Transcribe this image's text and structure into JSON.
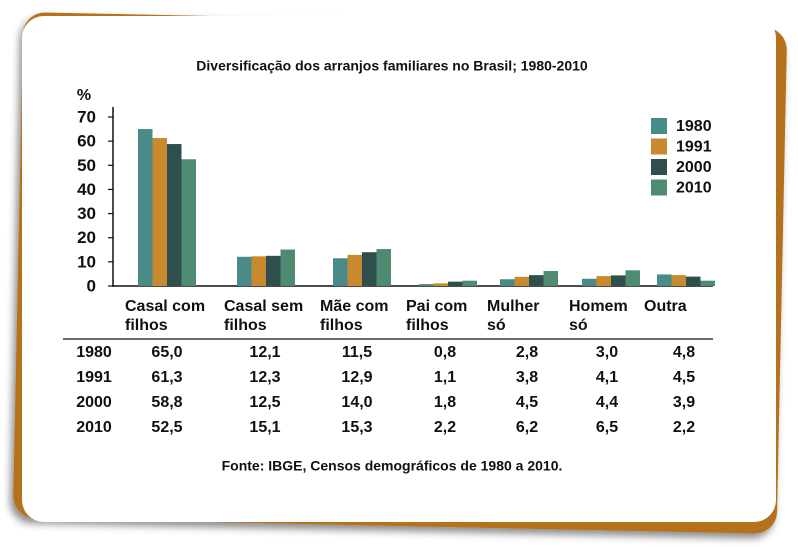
{
  "chart_data": {
    "type": "bar",
    "title": "Diversificação dos arranjos familiares no Brasil; 1980-2010",
    "y_axis_label": "%",
    "categories": [
      "Casal com\nfilhos",
      "Casal sem\nfilhos",
      "Mãe com\nfilhos",
      "Pai com\nfilhos",
      "Mulher\nsó",
      "Homem\nsó",
      "Outra"
    ],
    "series": [
      {
        "name": "1980",
        "color": "#4a8a88",
        "values": [
          65.0,
          12.1,
          11.5,
          0.8,
          2.8,
          3.0,
          4.8
        ],
        "value_labels": [
          "65,0",
          "12,1",
          "11,5",
          "0,8",
          "2,8",
          "3,0",
          "4,8"
        ]
      },
      {
        "name": "1991",
        "color": "#c98a2e",
        "values": [
          61.3,
          12.3,
          12.9,
          1.1,
          3.8,
          4.1,
          4.5
        ],
        "value_labels": [
          "61,3",
          "12,3",
          "12,9",
          "1,1",
          "3,8",
          "4,1",
          "4,5"
        ]
      },
      {
        "name": "2000",
        "color": "#2f4f4f",
        "values": [
          58.8,
          12.5,
          14.0,
          1.8,
          4.5,
          4.4,
          3.9
        ],
        "value_labels": [
          "58,8",
          "12,5",
          "14,0",
          "1,8",
          "4,5",
          "4,4",
          "3,9"
        ]
      },
      {
        "name": "2010",
        "color": "#4e8c72",
        "values": [
          52.5,
          15.1,
          15.3,
          2.2,
          6.2,
          6.5,
          2.2
        ],
        "value_labels": [
          "52,5",
          "15,1",
          "15,3",
          "2,2",
          "6,2",
          "6,5",
          "2,2"
        ]
      }
    ],
    "ylim": [
      0,
      70
    ],
    "yticks": [
      0,
      10,
      20,
      30,
      40,
      50,
      60,
      70
    ],
    "legend": "top-right",
    "source": "Fonte: IBGE, Censos demográficos de 1980 a 2010."
  }
}
